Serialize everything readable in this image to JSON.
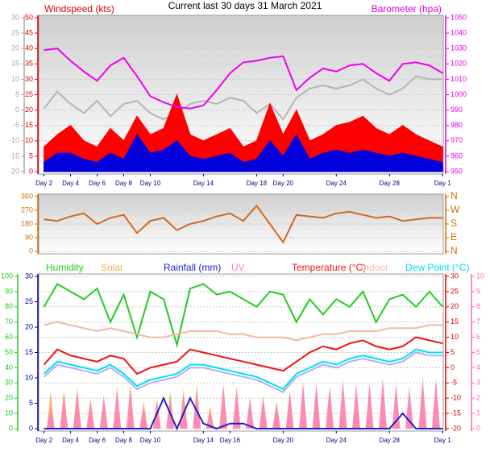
{
  "chart_data": [
    {
      "type": "line",
      "title": "Current last 30 days 31 March 2021",
      "x": [
        0,
        1,
        2,
        3,
        4,
        5,
        6,
        7,
        8,
        9,
        10,
        11,
        12,
        13,
        14,
        15,
        16,
        17,
        18,
        19,
        20,
        21,
        22,
        23,
        24,
        25,
        26,
        27,
        28,
        29,
        30
      ],
      "xlim": [
        -0.4,
        30.05
      ],
      "xticks": [
        {
          "value": 0,
          "label": "Day 2"
        },
        {
          "value": 2,
          "label": "Day 4"
        },
        {
          "value": 4,
          "label": "Day 6"
        },
        {
          "value": 6,
          "label": "Day 8"
        },
        {
          "value": 8,
          "label": "Day 10"
        },
        {
          "value": 12,
          "label": "Day 14"
        },
        {
          "value": 16,
          "label": "Day 18"
        },
        {
          "value": 18,
          "label": "Day 20"
        },
        {
          "value": 22,
          "label": "Day 24"
        },
        {
          "value": 26,
          "label": "Day 28"
        },
        {
          "value": 30,
          "label": "Day 1"
        }
      ],
      "axes": [
        {
          "id": "y0",
          "lim": [
            -20,
            30
          ],
          "ticks": [
            30,
            25,
            20,
            15,
            10,
            5,
            0,
            -5,
            -10,
            -15,
            -20
          ],
          "color": "#a8a8a8"
        },
        {
          "id": "y",
          "label": "Windspeed (kts)",
          "lim": [
            0,
            50
          ],
          "ticks": [
            50,
            45,
            40,
            35,
            30,
            25,
            20,
            15,
            10,
            5,
            0
          ],
          "color": "#dd0000",
          "grid": true
        },
        {
          "id": "y2",
          "label": "Barometer (hpa)",
          "lim": [
            950,
            1050
          ],
          "ticks": [
            1050,
            1040,
            1030,
            1020,
            1010,
            1000,
            990,
            980,
            970,
            960,
            950
          ],
          "color": "#dd00dd"
        }
      ],
      "series": [
        {
          "color": "#b4b4b4",
          "axis": "y0",
          "style": "line",
          "values": [
            0.5,
            6,
            2,
            -1,
            3,
            -2,
            2,
            3,
            -1,
            -3,
            -1,
            2,
            3,
            2,
            4,
            3,
            -1,
            2,
            -3,
            4,
            7,
            8,
            7,
            8,
            10,
            7,
            5,
            7,
            11,
            10,
            10
          ]
        },
        {
          "color": "#ff0000",
          "axis": "y",
          "style": "area",
          "values": [
            8,
            12,
            15,
            10,
            8,
            14,
            10,
            18,
            12,
            14,
            25,
            12,
            10,
            12,
            14,
            8,
            10,
            22,
            12,
            20,
            10,
            12,
            15,
            16,
            18,
            14,
            12,
            15,
            12,
            10,
            8
          ]
        },
        {
          "color": "#0000dd",
          "axis": "y",
          "style": "area",
          "values": [
            3,
            6,
            6,
            4,
            3,
            6,
            4,
            12,
            6,
            7,
            10,
            5,
            4,
            5,
            6,
            3,
            4,
            10,
            5,
            12,
            4,
            6,
            7,
            6,
            7,
            6,
            5,
            6,
            5,
            4,
            3
          ]
        },
        {
          "color": "#ee00ee",
          "axis": "y2",
          "style": "line",
          "values": [
            1029,
            1030,
            1022,
            1015,
            1009,
            1019,
            1024,
            1012,
            999,
            995,
            992,
            991,
            993,
            1003,
            1014,
            1021,
            1022,
            1024,
            1025,
            1003,
            1011,
            1017,
            1015,
            1019,
            1020,
            1014,
            1009,
            1020,
            1021,
            1019,
            1014
          ]
        }
      ]
    },
    {
      "type": "line",
      "x": [
        0,
        1,
        2,
        3,
        4,
        5,
        6,
        7,
        8,
        9,
        10,
        11,
        12,
        13,
        14,
        15,
        16,
        17,
        18,
        19,
        20,
        21,
        22,
        23,
        24,
        25,
        26,
        27,
        28,
        29,
        30
      ],
      "xlim": [
        -0.4,
        30.05
      ],
      "axes": [
        {
          "id": "y",
          "lim": [
            0,
            360
          ],
          "ticks": [
            360,
            270,
            180,
            90,
            0
          ],
          "color": "#d46a00",
          "grid": true
        },
        {
          "id": "y2",
          "lim": [
            0,
            360
          ],
          "ticks": [
            {
              "value": 360,
              "label": "N"
            },
            {
              "value": 270,
              "label": "W"
            },
            {
              "value": 180,
              "label": "S"
            },
            {
              "value": 90,
              "label": "E"
            },
            {
              "value": 0,
              "label": "N"
            }
          ],
          "color": "#d46a00"
        }
      ],
      "series": [
        {
          "color": "#d2691e",
          "axis": "y",
          "style": "line",
          "values": [
            210,
            200,
            230,
            250,
            180,
            220,
            240,
            120,
            200,
            220,
            140,
            180,
            200,
            230,
            250,
            200,
            300,
            180,
            60,
            240,
            230,
            220,
            250,
            260,
            240,
            220,
            230,
            200,
            210,
            220,
            220
          ]
        }
      ]
    },
    {
      "type": "line",
      "x": [
        0,
        1,
        2,
        3,
        4,
        5,
        6,
        7,
        8,
        9,
        10,
        11,
        12,
        13,
        14,
        15,
        16,
        17,
        18,
        19,
        20,
        21,
        22,
        23,
        24,
        25,
        26,
        27,
        28,
        29,
        30
      ],
      "xlim": [
        -0.4,
        30.05
      ],
      "xticks": [
        {
          "value": 0,
          "label": "Day 2"
        },
        {
          "value": 2,
          "label": "Day 4"
        },
        {
          "value": 4,
          "label": "Day 6"
        },
        {
          "value": 6,
          "label": "Day 8"
        },
        {
          "value": 8,
          "label": "Day 10"
        },
        {
          "value": 12,
          "label": "Day 14"
        },
        {
          "value": 14,
          "label": "Day 16"
        },
        {
          "value": 18,
          "label": "Day 20"
        },
        {
          "value": 22,
          "label": "Day 24"
        },
        {
          "value": 26,
          "label": "Day 28"
        },
        {
          "value": 30,
          "label": "Day 1"
        }
      ],
      "axes": [
        {
          "id": "hum",
          "lim": [
            0,
            100
          ],
          "ticks": [
            100,
            90,
            80,
            70,
            60,
            50,
            40,
            30,
            20,
            10,
            0
          ],
          "color": "#22cc22"
        },
        {
          "id": "rain",
          "lim": [
            0,
            30
          ],
          "ticks": [
            30,
            25,
            20,
            15,
            10,
            5,
            0
          ],
          "color": "#000099"
        },
        {
          "id": "temp",
          "lim": [
            -20,
            30
          ],
          "ticks": [
            30,
            25,
            20,
            15,
            10,
            5,
            0,
            -5,
            -10,
            -15,
            -20
          ],
          "color": "#dd0000",
          "grid": true
        },
        {
          "id": "uv",
          "lim": [
            0,
            10
          ],
          "ticks": [
            10,
            9,
            8,
            7,
            6,
            5,
            4,
            3,
            2,
            1,
            0
          ],
          "color": "#ff69b4"
        }
      ],
      "series": [
        {
          "name": "Humidity",
          "color": "#22cc22",
          "axis": "hum",
          "style": "line",
          "values": [
            80,
            95,
            90,
            85,
            92,
            70,
            88,
            60,
            90,
            85,
            55,
            92,
            95,
            88,
            90,
            85,
            80,
            90,
            88,
            70,
            85,
            75,
            85,
            80,
            90,
            70,
            85,
            88,
            80,
            90,
            80
          ]
        },
        {
          "name": "Solar",
          "color": "#f0b040",
          "axis": "uv",
          "style": "peaks",
          "x": [
            0.5,
            1.5,
            2.5,
            3.5,
            4.5,
            5.5,
            6.5,
            7.5,
            8.5,
            9.5,
            10.5,
            11.5,
            12.5,
            13.5,
            14.5,
            15.5,
            16.5,
            17.5,
            18.5,
            19.5,
            20.5,
            21.5,
            22.5,
            23.5,
            24.5,
            25.5,
            26.5,
            27.5,
            28.5,
            29.5
          ],
          "values": [
            2.5,
            2.6,
            2.7,
            2,
            2.2,
            2.8,
            2.9,
            1.8,
            2,
            2.5,
            2.6,
            2.9,
            1.5,
            3,
            2.8,
            2,
            2.2,
            1.8,
            2.5,
            3,
            2.8,
            2.7,
            3,
            2.5,
            2.8,
            3.2,
            2.6,
            2.4,
            3,
            3
          ]
        },
        {
          "name": "Rainfall (mm)",
          "color": "#2020cc",
          "axis": "rain",
          "style": "line",
          "values": [
            0,
            0,
            0,
            0,
            0,
            0,
            0,
            0,
            0,
            6,
            0,
            6,
            1,
            0,
            1,
            1,
            0,
            0,
            0,
            0,
            0,
            0,
            0,
            0,
            0,
            0,
            0,
            3,
            0,
            0,
            0
          ]
        },
        {
          "name": "UV",
          "color": "#ff77cc",
          "axis": "uv",
          "style": "peaks",
          "x": [
            0.5,
            1.5,
            2.5,
            3.5,
            4.5,
            5.5,
            6.5,
            7.5,
            8.5,
            9.5,
            10.5,
            11.5,
            12.5,
            13.5,
            14.5,
            15.5,
            16.5,
            17.5,
            18.5,
            19.5,
            20.5,
            21.5,
            22.5,
            23.5,
            24.5,
            25.5,
            26.5,
            27.5,
            28.5,
            29.5
          ],
          "values": [
            1.5,
            2.2,
            2.5,
            1.8,
            2,
            2.5,
            2.6,
            1.5,
            1.8,
            2,
            2.2,
            2.6,
            1.2,
            2.8,
            2.6,
            2,
            2,
            1.6,
            2.4,
            3,
            3,
            2.8,
            3.2,
            3,
            3,
            3.3,
            3,
            2.8,
            3.4,
            3.3
          ]
        },
        {
          "name": "Temperature (°C)",
          "color": "#ee1111",
          "axis": "temp",
          "style": "line",
          "values": [
            1,
            6,
            4,
            3,
            2,
            4,
            3,
            -2,
            0,
            1,
            2,
            6,
            5,
            4,
            3,
            2,
            1,
            0,
            -1,
            2,
            5,
            7,
            6,
            8,
            9,
            7,
            6,
            7,
            10,
            9,
            8
          ]
        },
        {
          "name": "Indoor",
          "color": "#f5b8a0",
          "axis": "temp",
          "style": "line",
          "values": [
            14,
            15,
            14,
            13,
            12,
            13,
            12,
            11,
            10,
            10,
            11,
            12,
            12,
            12,
            11,
            11,
            10,
            10,
            10,
            9,
            10,
            11,
            11,
            12,
            12,
            12,
            13,
            13,
            13,
            14,
            14
          ]
        },
        {
          "name": "Dew Point (°C)",
          "color": "#00e0ee",
          "axis": "temp",
          "style": "line",
          "values": [
            -2,
            2,
            1,
            0,
            -1,
            1,
            -2,
            -6,
            -4,
            -3,
            -2,
            1,
            1,
            0,
            -1,
            -2,
            -3,
            -5,
            -7,
            -2,
            0,
            2,
            1,
            3,
            4,
            3,
            2,
            3,
            6,
            5,
            5
          ]
        },
        {
          "color": "#b0b0f0",
          "axis": "temp",
          "style": "line",
          "values": [
            -3,
            1,
            0,
            -1,
            -2,
            0,
            -3,
            -7,
            -5,
            -4,
            -3,
            0,
            0,
            -1,
            -2,
            -3,
            -4,
            -6,
            -8,
            -3,
            -1,
            1,
            0,
            2,
            3,
            2,
            1,
            2,
            5,
            4,
            4
          ]
        }
      ]
    }
  ]
}
